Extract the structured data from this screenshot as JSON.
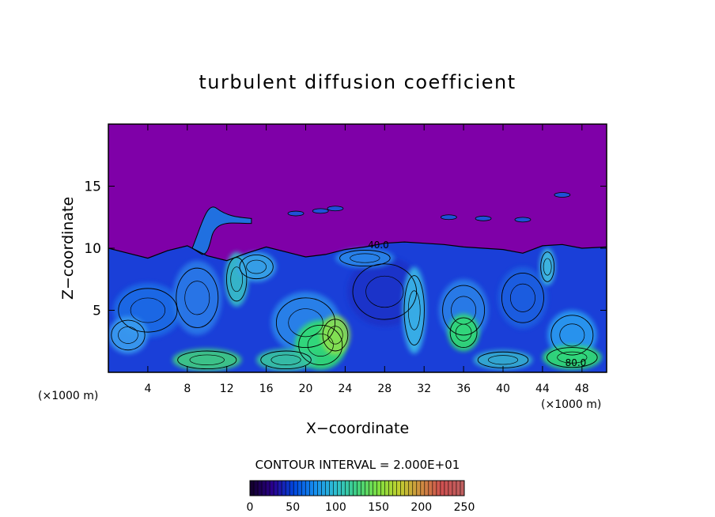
{
  "chart_data": {
    "type": "heatmap",
    "title": "turbulent diffusion coefficient",
    "xlabel": "X−coordinate",
    "ylabel": "Z−coordinate",
    "xlim": [
      0,
      50.5
    ],
    "ylim": [
      0,
      20
    ],
    "x_ticks": [
      4,
      8,
      12,
      16,
      20,
      24,
      28,
      32,
      36,
      40,
      44,
      48
    ],
    "y_ticks": [
      5,
      10,
      15
    ],
    "x_unit_left": "(×1000 m)",
    "x_unit_right": "(×1000 m)",
    "contour_interval_text": "CONTOUR INTERVAL = 2.000E+01",
    "contour_labels": [
      {
        "text": "40.0",
        "x": 26.3,
        "z": 10.0
      },
      {
        "text": "80.0",
        "x": 46.3,
        "z": 0.5
      }
    ],
    "colorbar": {
      "min": 0,
      "max": 250,
      "ticks": [
        0,
        50,
        100,
        150,
        200,
        250
      ],
      "colors": [
        "#140030",
        "#2a0090",
        "#0048e0",
        "#1890f0",
        "#30c0d0",
        "#40d080",
        "#80e040",
        "#c0d030",
        "#d09040",
        "#d05050",
        "#c06060"
      ]
    },
    "background_color": "#7f00a8",
    "field_description_colors": {
      "low": "#7f00a8",
      "mid": "#1e6ce6",
      "high": "#30e070"
    }
  }
}
